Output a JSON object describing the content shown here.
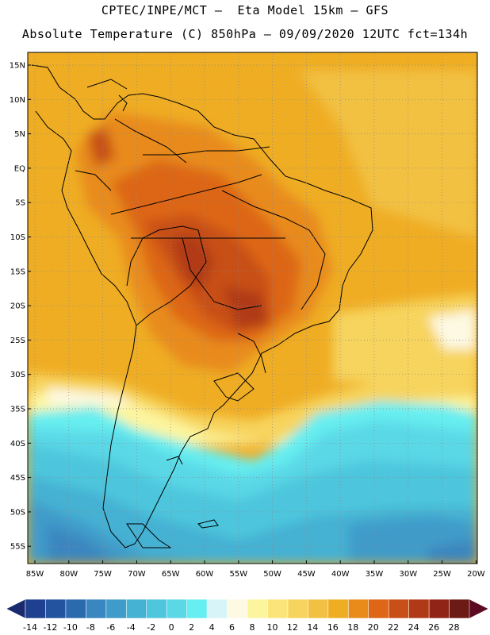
{
  "title_line1": "CPTEC/INPE/MCT –  Eta Model 15km – GFS",
  "title_line2": "Absolute Temperature (C) 850hPa – 09/09/2020 12UTC fct=134h",
  "lat_labels": [
    "15N",
    "10N",
    "5N",
    "EQ",
    "5S",
    "10S",
    "15S",
    "20S",
    "25S",
    "30S",
    "35S",
    "40S",
    "45S",
    "50S",
    "55S"
  ],
  "lon_labels": [
    "85W",
    "80W",
    "75W",
    "70W",
    "65W",
    "60W",
    "55W",
    "50W",
    "45W",
    "40W",
    "35W",
    "30W",
    "25W",
    "20W"
  ],
  "colorbar": {
    "ticks": [
      "-14",
      "-12",
      "-10",
      "-8",
      "-6",
      "-4",
      "-2",
      "0",
      "2",
      "4",
      "6",
      "8",
      "10",
      "12",
      "14",
      "16",
      "18",
      "20",
      "22",
      "24",
      "26",
      "28"
    ],
    "colors": [
      "#1f3f8f",
      "#23539e",
      "#2a6aad",
      "#3a86c0",
      "#3f9bc9",
      "#45b1d3",
      "#4ec6dd",
      "#5ad8e6",
      "#66eef0",
      "#d7f5f8",
      "#fdf9e3",
      "#fdf59e",
      "#fbe57a",
      "#f7d45d",
      "#f2c143",
      "#efad24",
      "#e88b1a",
      "#dd6617",
      "#c84f17",
      "#b03a17",
      "#8f2417",
      "#6c1a15"
    ],
    "arrow_left": "#1a2a6e",
    "arrow_right": "#5c0a22"
  }
}
